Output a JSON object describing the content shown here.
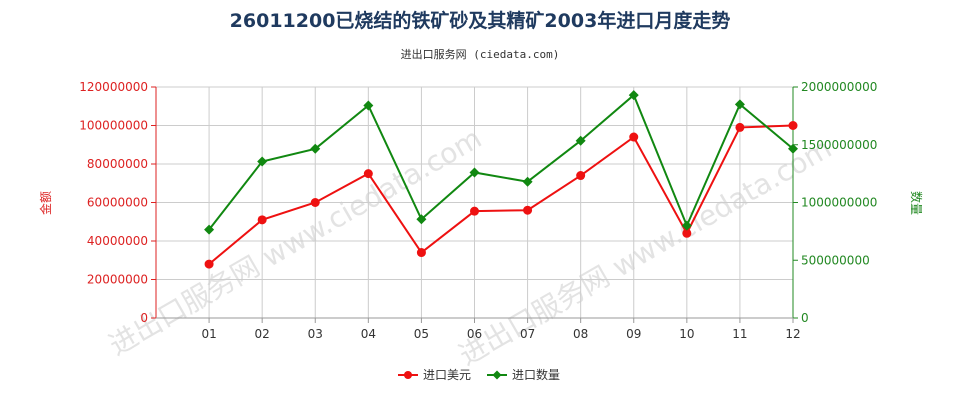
{
  "title": "26011200已烧结的铁矿砂及其精矿2003年进口月度走势",
  "subtitle": "进出口服务网 (ciedata.com)",
  "watermark": "进出口服务网 www.ciedata.com",
  "colors": {
    "series_value": "#ee1111",
    "series_quantity": "#118811",
    "left_axis": "#dd2222",
    "right_axis": "#228822",
    "grid": "#cccccc",
    "title": "#1f3a5f"
  },
  "chart_data": {
    "type": "line",
    "categories": [
      "01",
      "02",
      "03",
      "04",
      "05",
      "06",
      "07",
      "08",
      "09",
      "10",
      "11",
      "12"
    ],
    "y_left": {
      "label": "金额",
      "ylim": [
        0,
        120000000
      ],
      "ticks": [
        "0",
        "20000000",
        "40000000",
        "60000000",
        "80000000",
        "100000000",
        "120000000"
      ]
    },
    "y_right": {
      "label": "数量",
      "ylim": [
        0,
        2000000000
      ],
      "ticks": [
        "0",
        "500000000",
        "1000000000",
        "1500000000",
        "2000000000"
      ]
    },
    "series": [
      {
        "name": "进口美元",
        "axis": "left",
        "values": [
          28000000,
          51000000,
          60000000,
          75000000,
          34000000,
          55500000,
          56000000,
          74000000,
          94000000,
          44000000,
          99000000,
          100000000
        ]
      },
      {
        "name": "进口数量",
        "axis": "right",
        "values": [
          765000000,
          1355000000,
          1465000000,
          1840000000,
          855000000,
          1260000000,
          1180000000,
          1535000000,
          1930000000,
          800000000,
          1850000000,
          1465000000
        ]
      }
    ],
    "grid": true,
    "legend": "bottom-center"
  }
}
